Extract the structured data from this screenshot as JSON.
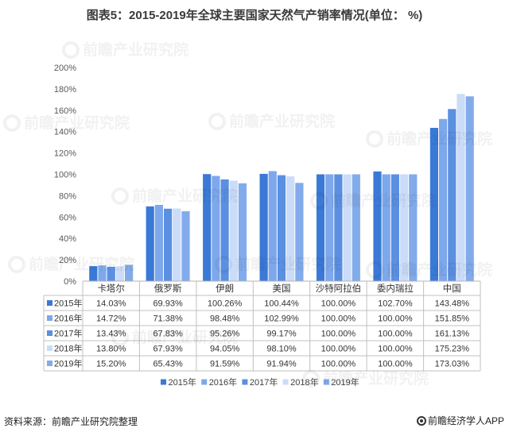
{
  "watermark": "前瞻产业研究院",
  "footer": {
    "source": "资料来源：前瞻产业研究院整理",
    "brand_icon": "qianzhan-logo-icon",
    "brand": "前瞻经济学人APP"
  },
  "chart_data": {
    "type": "bar",
    "title": "图表5：2015-2019年全球主要国家天然气产销率情况(单位： %)",
    "unit": "%",
    "categories": [
      "卡塔尔",
      "俄罗斯",
      "伊朗",
      "美国",
      "沙特阿拉伯",
      "委内瑞拉",
      "中国"
    ],
    "ylim": [
      0,
      200
    ],
    "yticks": [
      "0%",
      "20%",
      "40%",
      "60%",
      "80%",
      "100%",
      "120%",
      "140%",
      "160%",
      "180%",
      "200%"
    ],
    "grid": false,
    "legend": "bottom",
    "data_table": true,
    "series": [
      {
        "name": "2015年",
        "color": "#3b79d7",
        "values": [
          14.03,
          69.93,
          100.26,
          100.44,
          100.0,
          102.7,
          143.48
        ]
      },
      {
        "name": "2016年",
        "color": "#7da8eb",
        "values": [
          14.72,
          71.38,
          98.48,
          102.99,
          100.0,
          100.0,
          151.85
        ]
      },
      {
        "name": "2017年",
        "color": "#5b8fe2",
        "values": [
          13.43,
          67.83,
          95.26,
          99.17,
          100.0,
          100.0,
          161.13
        ]
      },
      {
        "name": "2018年",
        "color": "#cadcf8",
        "values": [
          13.8,
          67.93,
          94.05,
          98.1,
          100.0,
          100.0,
          175.23
        ]
      },
      {
        "name": "2019年",
        "color": "#82abeb",
        "values": [
          15.2,
          65.43,
          91.59,
          91.94,
          100.0,
          100.0,
          173.03
        ]
      }
    ]
  }
}
